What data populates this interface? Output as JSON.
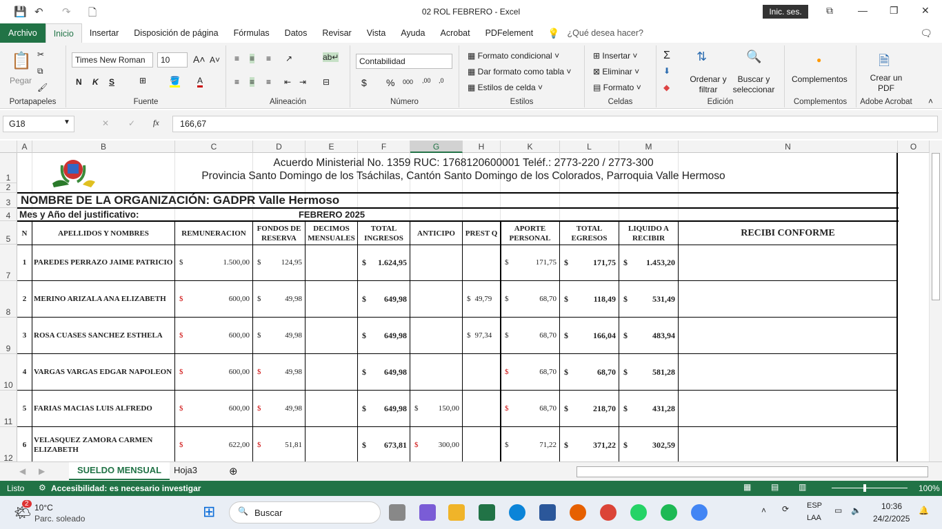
{
  "window": {
    "title": "02 ROL FEBRERO  -  Excel",
    "signin": "Inic. ses."
  },
  "menu": {
    "tabs": [
      "Archivo",
      "Inicio",
      "Insertar",
      "Disposición de página",
      "Fórmulas",
      "Datos",
      "Revisar",
      "Vista",
      "Ayuda",
      "Acrobat",
      "PDFelement"
    ],
    "search": "¿Qué desea hacer?"
  },
  "ribbon": {
    "clipboard": {
      "paste": "Pegar",
      "label": "Portapapeles"
    },
    "font": {
      "name": "Times New Roman",
      "size": "10",
      "bold": "N",
      "italic": "K",
      "underline": "S",
      "label": "Fuente"
    },
    "alignment": {
      "label": "Alineación"
    },
    "number": {
      "format": "Contabilidad",
      "label": "Número"
    },
    "styles": {
      "conditional": "Formato condicional",
      "table": "Dar formato como tabla",
      "cell": "Estilos de celda",
      "label": "Estilos"
    },
    "cells": {
      "insert": "Insertar",
      "delete": "Eliminar",
      "format": "Formato",
      "label": "Celdas"
    },
    "editing": {
      "sort": "Ordenar y filtrar",
      "find": "Buscar y seleccionar",
      "label": "Edición"
    },
    "addins": {
      "btn": "Complementos",
      "label": "Complementos"
    },
    "acrobat": {
      "btn": "Crear un PDF",
      "label": "Adobe Acrobat"
    }
  },
  "formula_bar": {
    "name_box": "G18",
    "fx": "fx",
    "value": "166,67"
  },
  "columns": [
    "A",
    "B",
    "C",
    "D",
    "E",
    "F",
    "G",
    "H",
    "K",
    "L",
    "M",
    "N",
    "O"
  ],
  "selected_column": "G",
  "sheet": {
    "header_line1": "Acuerdo Ministerial No. 1359 RUC: 1768120600001 Teléf.: 2773-220 / 2773-300",
    "header_line2": "Provincia Santo Domingo de los Tsáchilas, Cantón Santo Domingo de los Colorados, Parroquia Valle Hermoso",
    "org": "NOMBRE DE LA ORGANIZACIÓN: GADPR Valle Hermoso",
    "period_label": "Mes y Año del justificativo:",
    "period": "FEBRERO 2025",
    "headers": [
      "N",
      "APELLIDOS Y NOMBRES",
      "REMUNERACION",
      "FONDOS DE RESERVA",
      "DECIMOS MENSUALES",
      "TOTAL INGRESOS",
      "ANTICIPO",
      "PREST Q",
      "APORTE PERSONAL",
      "TOTAL EGRESOS",
      "LIQUIDO A RECIBIR",
      "RECIBI CONFORME"
    ],
    "rows": [
      {
        "row": "7",
        "n": "1",
        "name": "PAREDES PERRAZO JAIME PATRICIO",
        "rem": "1.500,00",
        "fondos": "124,95",
        "decimos": "",
        "ingresos": "1.624,95",
        "anticipo": "",
        "prest": "",
        "aporte": "171,75",
        "egresos": "171,75",
        "liquido": "1.453,20"
      },
      {
        "row": "8",
        "n": "2",
        "name": "MERINO ARIZALA ANA ELIZABETH",
        "rem": "600,00",
        "fondos": "49,98",
        "decimos": "",
        "ingresos": "649,98",
        "anticipo": "",
        "prest": "49,79",
        "aporte": "68,70",
        "egresos": "118,49",
        "liquido": "531,49"
      },
      {
        "row": "9",
        "n": "3",
        "name": "ROSA CUASES SANCHEZ ESTHELA",
        "rem": "600,00",
        "fondos": "49,98",
        "decimos": "",
        "ingresos": "649,98",
        "anticipo": "",
        "prest": "97,34",
        "aporte": "68,70",
        "egresos": "166,04",
        "liquido": "483,94"
      },
      {
        "row": "10",
        "n": "4",
        "name": "VARGAS VARGAS EDGAR NAPOLEON",
        "rem": "600,00",
        "fondos": "49,98",
        "decimos": "",
        "ingresos": "649,98",
        "anticipo": "",
        "prest": "",
        "aporte": "68,70",
        "egresos": "68,70",
        "liquido": "581,28"
      },
      {
        "row": "11",
        "n": "5",
        "name": "FARIAS MACIAS LUIS ALFREDO",
        "rem": "600,00",
        "fondos": "49,98",
        "decimos": "",
        "ingresos": "649,98",
        "anticipo": "150,00",
        "prest": "",
        "aporte": "68,70",
        "egresos": "218,70",
        "liquido": "431,28"
      },
      {
        "row": "12",
        "n": "6",
        "name": "VELASQUEZ ZAMORA CARMEN ELIZABETH",
        "rem": "622,00",
        "fondos": "51,81",
        "decimos": "",
        "ingresos": "673,81",
        "anticipo": "300,00",
        "prest": "",
        "aporte": "71,22",
        "egresos": "371,22",
        "liquido": "302,59"
      }
    ],
    "currency": "$"
  },
  "sheet_tabs": [
    "SUELDO MENSUAL",
    "Hoja3"
  ],
  "status": {
    "ready": "Listo",
    "accessibility": "Accesibilidad: es necesario investigar",
    "zoom": "100%"
  },
  "taskbar": {
    "temp": "10°C",
    "weather": "Parc. soleado",
    "badge": "2",
    "search": "Buscar",
    "lang1": "ESP",
    "lang2": "LAA",
    "time": "10:36",
    "date": "24/2/2025"
  }
}
